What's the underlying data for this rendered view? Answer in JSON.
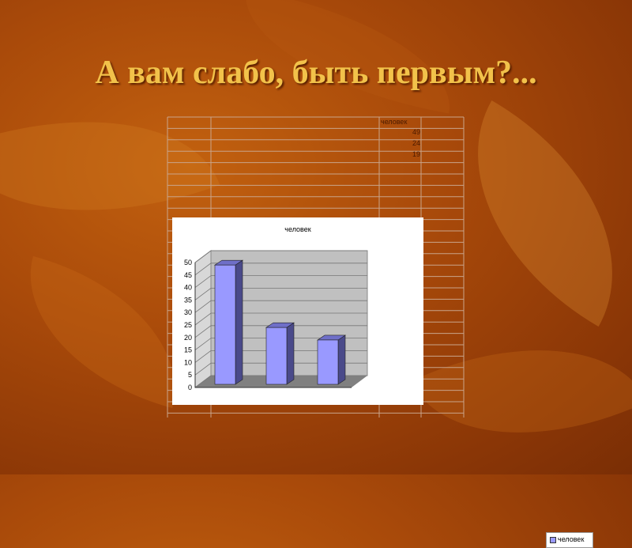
{
  "slide": {
    "title": "А вам слабо, быть первым?..."
  },
  "sheet": {
    "header": "человек",
    "values": [
      "49",
      "24",
      "19"
    ]
  },
  "chart_data": {
    "type": "bar",
    "title": "человек",
    "categories": [
      "",
      "",
      ""
    ],
    "series": [
      {
        "name": "человек",
        "values": [
          49,
          24,
          19
        ]
      }
    ],
    "ylim": [
      0,
      50
    ],
    "yticks": [
      "0",
      "5",
      "10",
      "15",
      "20",
      "25",
      "30",
      "35",
      "40",
      "45",
      "50"
    ],
    "grid": true,
    "legend": "right",
    "colors": {
      "bar": "#9999ff",
      "bar_side": "#4a4a8a",
      "wall": "#c0c0c0",
      "floor": "#808080"
    }
  }
}
